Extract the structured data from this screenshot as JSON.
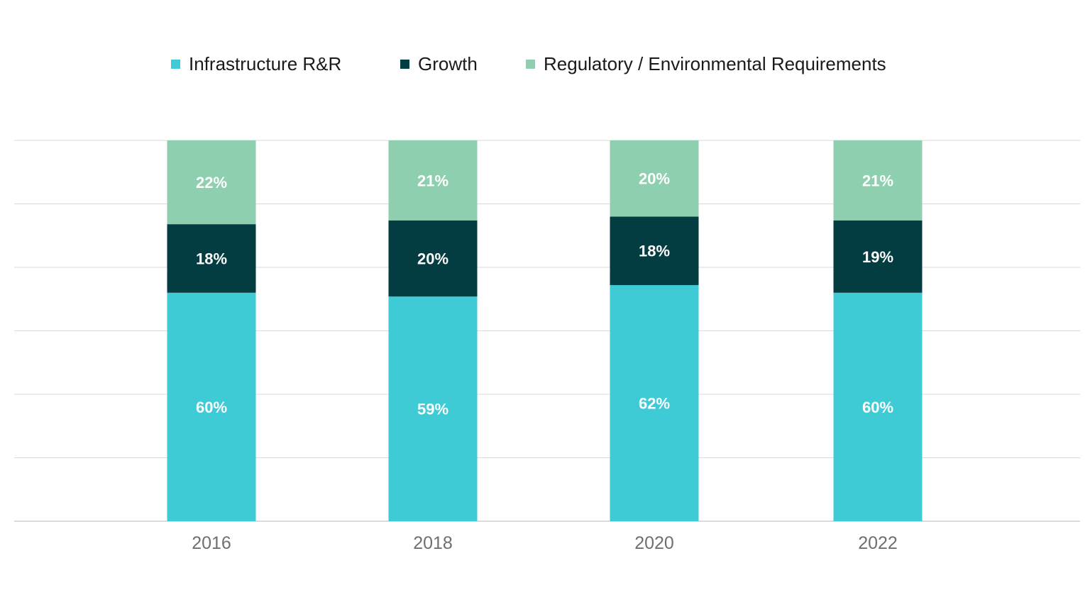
{
  "chart_data": {
    "type": "bar",
    "stacked": true,
    "normalized": true,
    "categories": [
      "2016",
      "2018",
      "2020",
      "2022"
    ],
    "series": [
      {
        "name": "Infrastructure R&R",
        "color": "#3ECBD6",
        "values": [
          60,
          59,
          62,
          60
        ],
        "labels": [
          "60%",
          "59%",
          "62%",
          "60%"
        ]
      },
      {
        "name": "Growth",
        "color": "#033C41",
        "values": [
          18,
          20,
          18,
          19
        ],
        "labels": [
          "18%",
          "20%",
          "18%",
          "19%"
        ]
      },
      {
        "name": "Regulatory / Environmental Requirements",
        "color": "#8ECFAF",
        "values": [
          22,
          21,
          20,
          21
        ],
        "labels": [
          "22%",
          "21%",
          "20%",
          "21%"
        ]
      }
    ],
    "ylim": [
      0,
      100
    ],
    "grid": true,
    "legend_position": "top",
    "title": "",
    "xlabel": "",
    "ylabel": ""
  }
}
